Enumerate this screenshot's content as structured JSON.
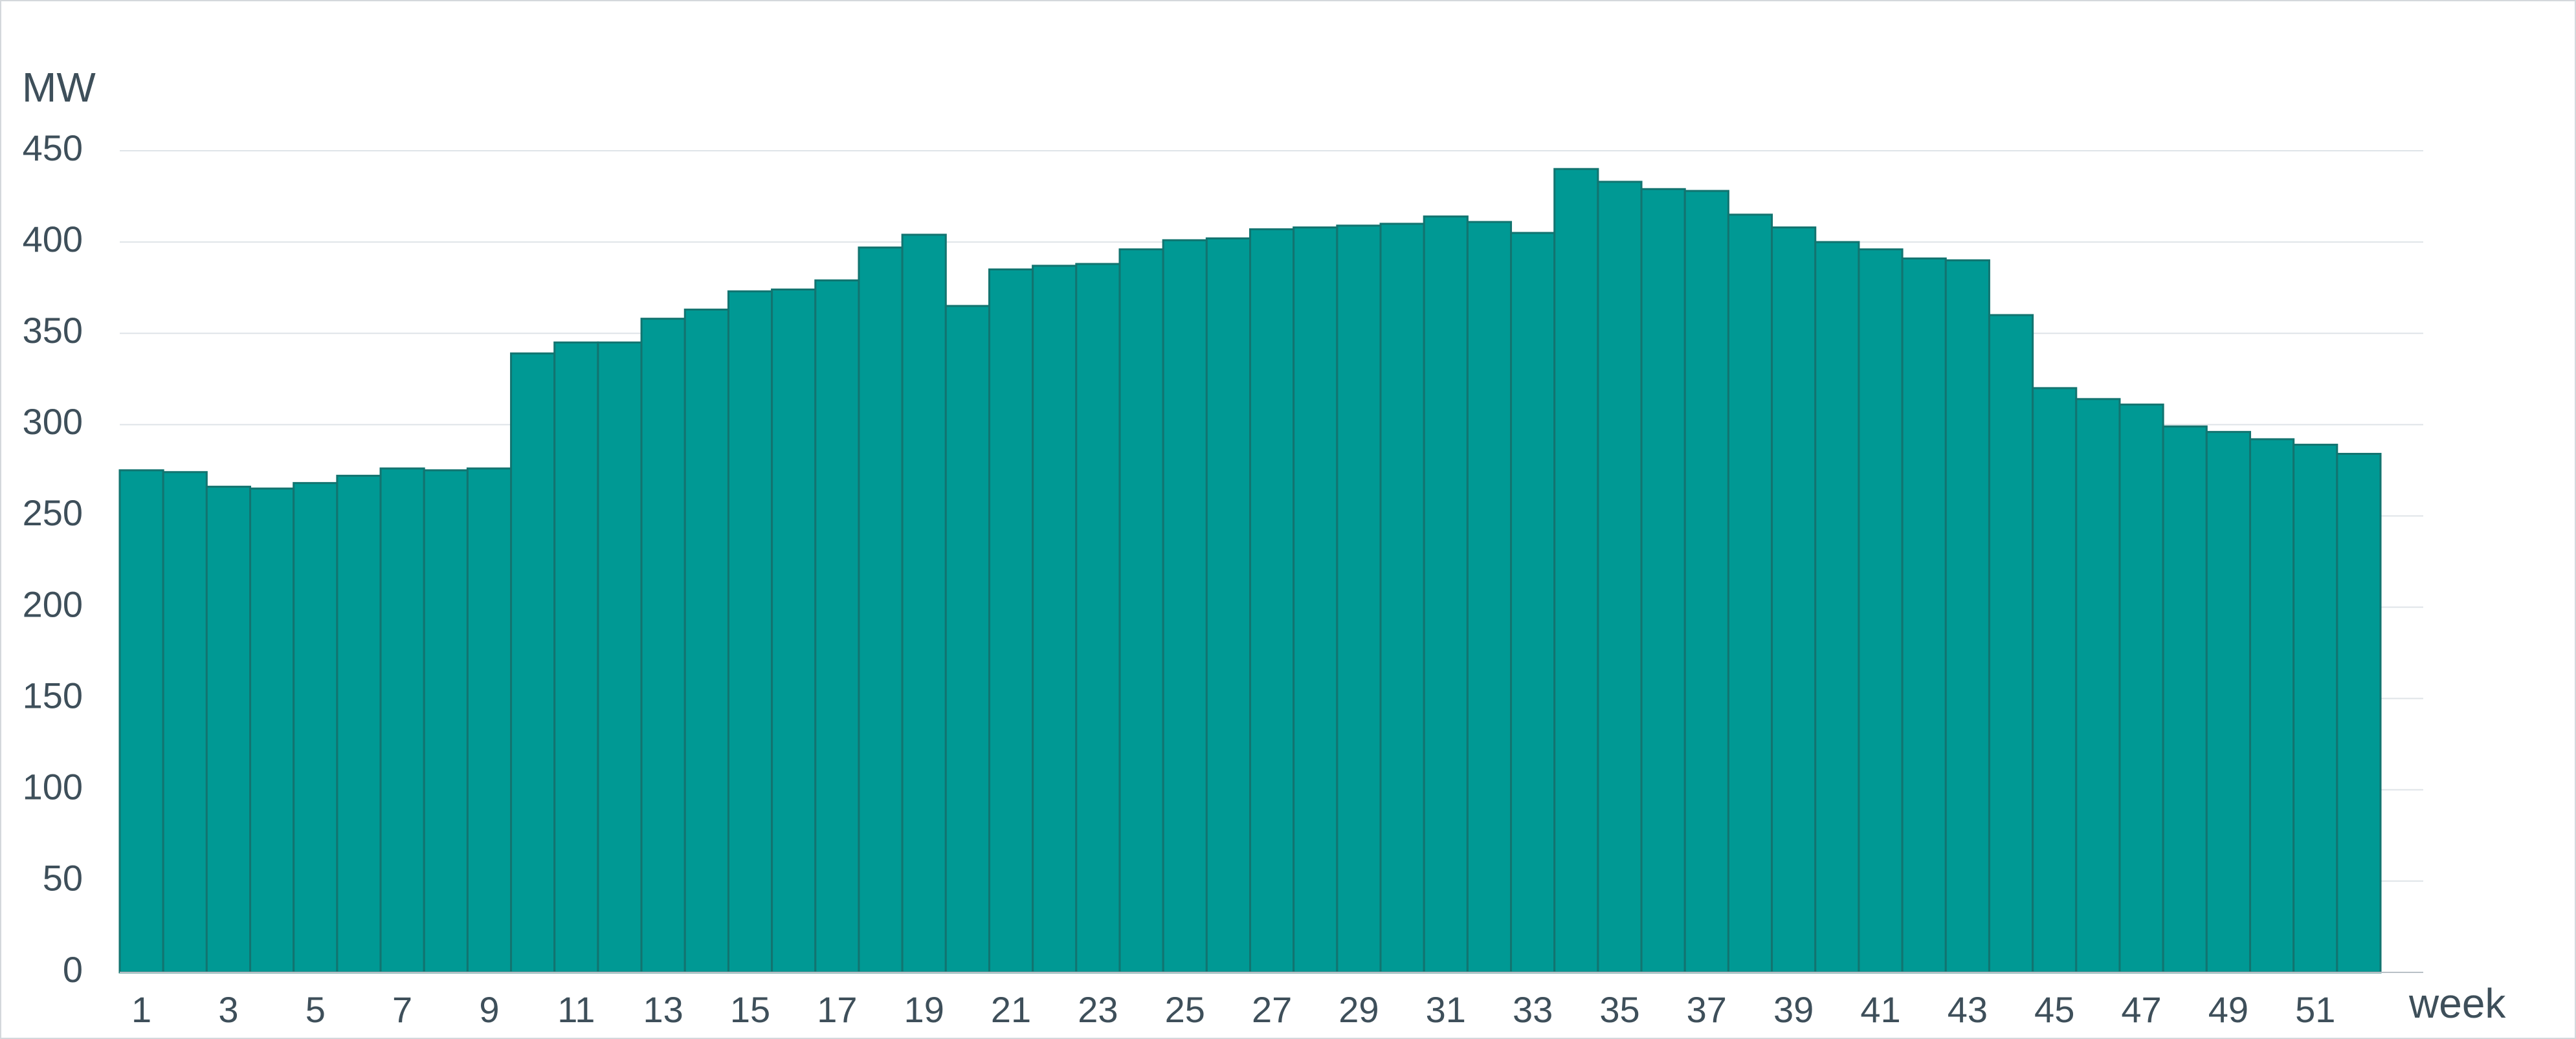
{
  "chart_data": {
    "type": "bar",
    "y_label": "MW",
    "x_label": "week",
    "categories": [
      "1",
      null,
      "3",
      null,
      "5",
      null,
      "7",
      null,
      "9",
      null,
      "11",
      null,
      "13",
      null,
      "15",
      null,
      "17",
      null,
      "19",
      null,
      "21",
      null,
      "23",
      null,
      "25",
      null,
      "27",
      null,
      "29",
      null,
      "31",
      null,
      "33",
      null,
      "35",
      null,
      "37",
      null,
      "39",
      null,
      "41",
      null,
      "43",
      null,
      "45",
      null,
      "47",
      null,
      "49",
      null,
      "51",
      null
    ],
    "values": [
      275,
      274,
      266,
      265,
      268,
      272,
      276,
      275,
      276,
      339,
      345,
      345,
      358,
      363,
      373,
      374,
      379,
      397,
      404,
      365,
      385,
      387,
      388,
      396,
      401,
      402,
      407,
      408,
      409,
      410,
      414,
      411,
      405,
      440,
      433,
      429,
      428,
      415,
      408,
      400,
      396,
      391,
      390,
      360,
      320,
      314,
      311,
      299,
      296,
      292,
      289,
      284
    ],
    "color": "#009994",
    "ylim": [
      0,
      450
    ],
    "yticks": [
      0,
      50,
      100,
      150,
      200,
      250,
      300,
      350,
      400,
      450
    ],
    "grid": true
  }
}
